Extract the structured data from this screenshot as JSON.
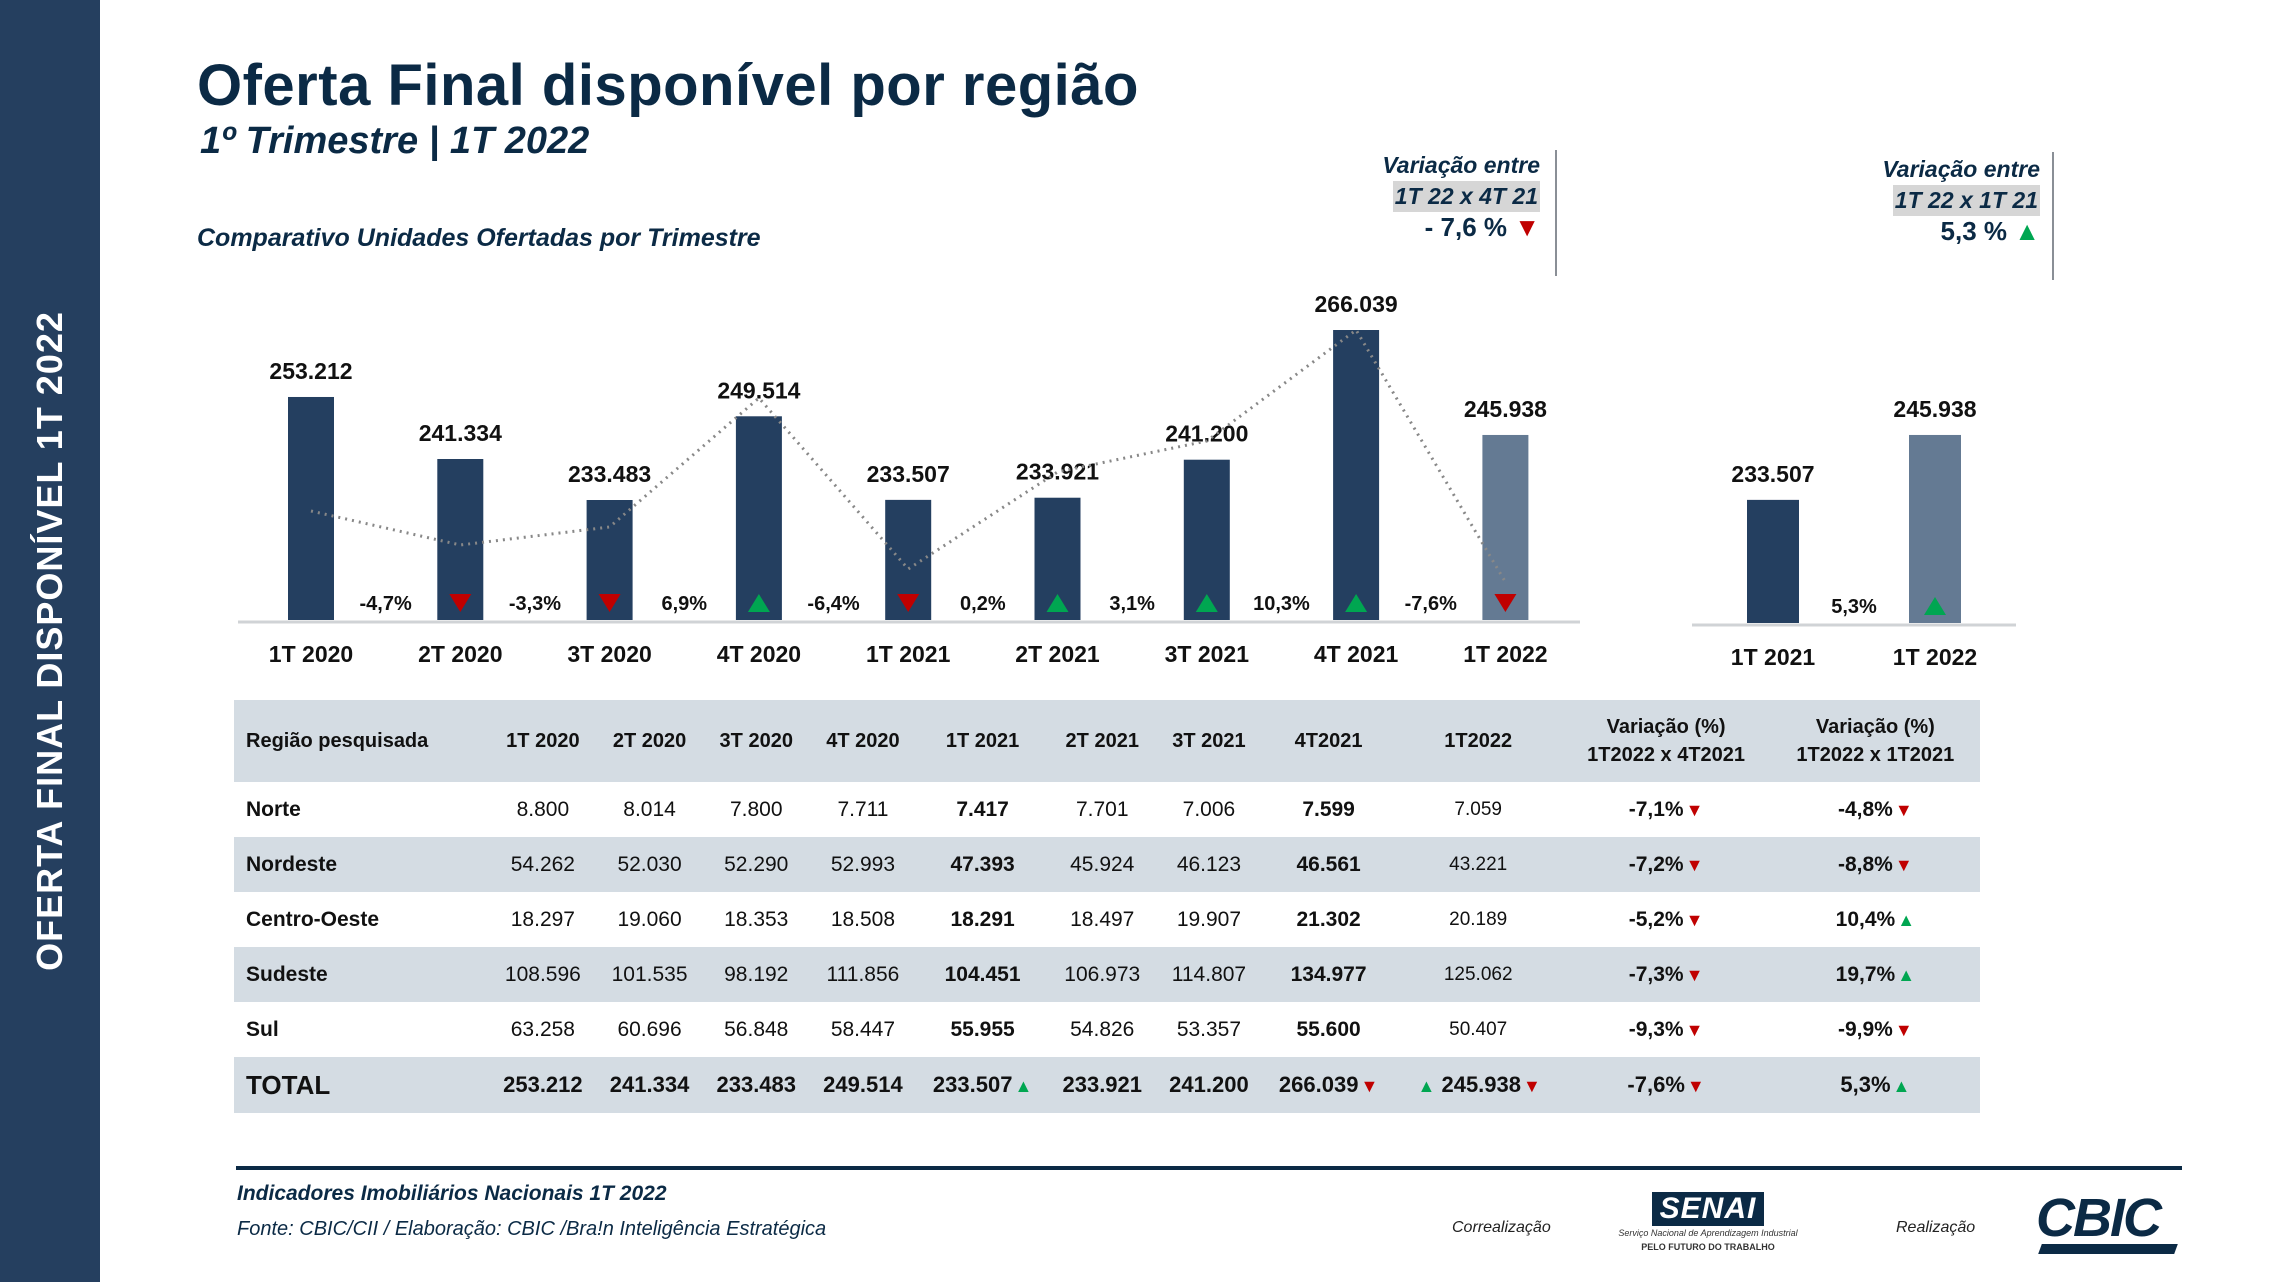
{
  "sidebar": {
    "text": "OFERTA FINAL DISPONÍVEL  1T 2022"
  },
  "header": {
    "title": "Oferta Final disponível por região",
    "subtitle": "1º Trimestre | 1T 2022",
    "chart_subtitle": "Comparativo Unidades Ofertadas por Trimestre"
  },
  "variation_boxes": [
    {
      "label": "Variação entre",
      "period": "1T 22 x 4T 21",
      "value": "- 7,6 %",
      "direction": "down"
    },
    {
      "label": "Variação entre",
      "period": "1T 22 x 1T 21",
      "value": "5,3 %",
      "direction": "up"
    }
  ],
  "arrows": {
    "up": "▲",
    "down": "▼"
  },
  "colors": {
    "bar_primary": "#243f60",
    "bar_highlight": "#647a93",
    "up": "#00a651",
    "down": "#c00000",
    "brand": "#0b2a45",
    "table_shade": "#d4dce3"
  },
  "chart_data": [
    {
      "type": "bar",
      "title": "Comparativo Unidades Ofertadas por Trimestre",
      "xlabel": "",
      "ylabel": "",
      "categories": [
        "1T 2020",
        "2T 2020",
        "3T 2020",
        "4T 2020",
        "1T 2021",
        "2T 2021",
        "3T 2021",
        "4T 2021",
        "1T 2022"
      ],
      "values": [
        253212,
        241334,
        233483,
        249514,
        233507,
        233921,
        241200,
        266039,
        245938
      ],
      "value_labels": [
        "253.212",
        "241.334",
        "233.483",
        "249.514",
        "233.507",
        "233.921",
        "241.200",
        "266.039",
        "245.938"
      ],
      "highlight_index": 8,
      "trend_line": "dotted",
      "changes": [
        {
          "label": "-4,7%",
          "direction": "down"
        },
        {
          "label": "-3,3%",
          "direction": "down"
        },
        {
          "label": "6,9%",
          "direction": "up"
        },
        {
          "label": "-6,4%",
          "direction": "down"
        },
        {
          "label": "0,2%",
          "direction": "up"
        },
        {
          "label": "3,1%",
          "direction": "up"
        },
        {
          "label": "10,3%",
          "direction": "up"
        },
        {
          "label": "-7,6%",
          "direction": "down"
        }
      ],
      "grid": false,
      "legend": "none"
    },
    {
      "type": "bar",
      "title": "",
      "categories": [
        "1T 2021",
        "1T 2022"
      ],
      "values": [
        233507,
        245938
      ],
      "value_labels": [
        "233.507",
        "245.938"
      ],
      "highlight_index": 1,
      "changes": [
        {
          "label": "5,3%",
          "direction": "up"
        }
      ],
      "grid": false,
      "legend": "none"
    }
  ],
  "table": {
    "headers": [
      "Região pesquisada",
      "1T 2020",
      "2T 2020",
      "3T 2020",
      "4T 2020",
      "1T 2021",
      "2T 2021",
      "3T 2021",
      "4T2021",
      "1T2022",
      "Variação (%)\n1T2022 x 4T2021",
      "Variação (%)\n1T2022 x 1T2021"
    ],
    "header_var1": [
      "Variação (%)",
      "1T2022 x 4T2021"
    ],
    "header_var2": [
      "Variação (%)",
      "1T2022 x 1T2021"
    ],
    "rows": [
      {
        "region": "Norte",
        "values": [
          "8.800",
          "8.014",
          "7.800",
          "7.711",
          "7.417",
          "7.701",
          "7.006",
          "7.599",
          "7.059"
        ],
        "var1": "-7,1%",
        "var1_dir": "down",
        "var2": "-4,8%",
        "var2_dir": "down"
      },
      {
        "region": "Nordeste",
        "values": [
          "54.262",
          "52.030",
          "52.290",
          "52.993",
          "47.393",
          "45.924",
          "46.123",
          "46.561",
          "43.221"
        ],
        "var1": "-7,2%",
        "var1_dir": "down",
        "var2": "-8,8%",
        "var2_dir": "down"
      },
      {
        "region": "Centro-Oeste",
        "values": [
          "18.297",
          "19.060",
          "18.353",
          "18.508",
          "18.291",
          "18.497",
          "19.907",
          "21.302",
          "20.189"
        ],
        "var1": "-5,2%",
        "var1_dir": "down",
        "var2": "10,4%",
        "var2_dir": "up"
      },
      {
        "region": "Sudeste",
        "values": [
          "108.596",
          "101.535",
          "98.192",
          "111.856",
          "104.451",
          "106.973",
          "114.807",
          "134.977",
          "125.062"
        ],
        "var1": "-7,3%",
        "var1_dir": "down",
        "var2": "19,7%",
        "var2_dir": "up"
      },
      {
        "region": "Sul",
        "values": [
          "63.258",
          "60.696",
          "56.848",
          "58.447",
          "55.955",
          "54.826",
          "53.357",
          "55.600",
          "50.407"
        ],
        "var1": "-9,3%",
        "var1_dir": "down",
        "var2": "-9,9%",
        "var2_dir": "down"
      }
    ],
    "total": {
      "region": "TOTAL",
      "values": [
        "253.212",
        "241.334",
        "233.483",
        "249.514",
        "233.507",
        "233.921",
        "241.200",
        "266.039",
        "245.938"
      ],
      "var1": "-7,6%",
      "var1_dir": "down",
      "var2": "5,3%",
      "var2_dir": "up"
    }
  },
  "footer": {
    "title": "Indicadores Imobiliários Nacionais 1T 2022",
    "source": "Fonte: CBIC/CII / Elaboração: CBIC /Bra!n Inteligência Estratégica",
    "correalizacao_label": "Correalização",
    "realizacao_label": "Realização",
    "senai_logo": "SENAI",
    "senai_sub": "Serviço Nacional de Aprendizagem Industrial",
    "senai_tag": "PELO FUTURO DO TRABALHO",
    "cbic_logo": "CBIC"
  }
}
